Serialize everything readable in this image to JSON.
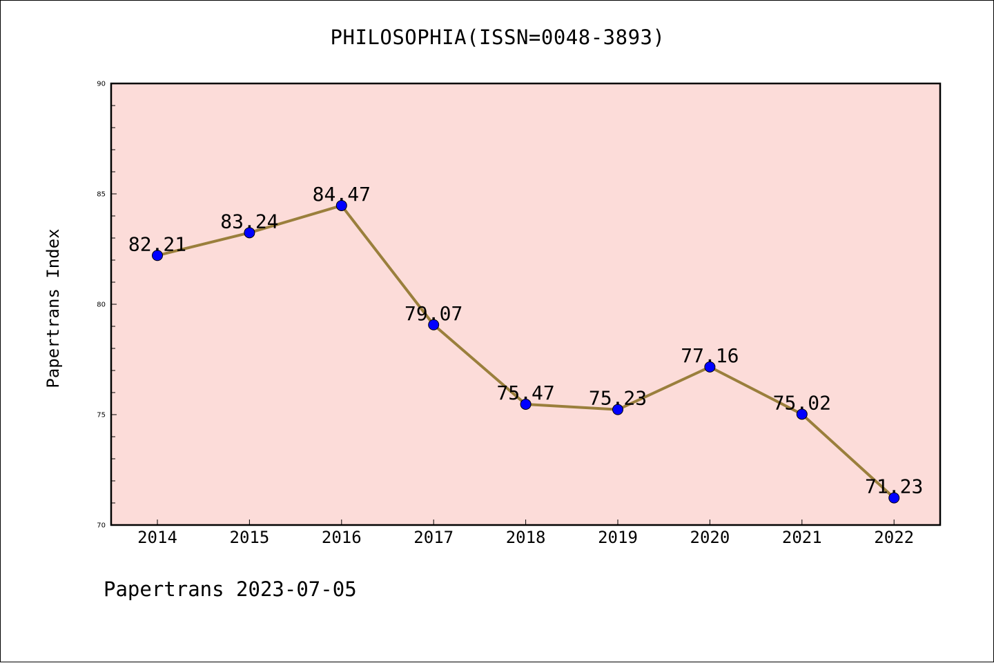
{
  "chart_data": {
    "type": "line",
    "title": "PHILOSOPHIA(ISSN=0048-3893)",
    "ylabel": "Papertrans Index",
    "xlabel": "",
    "categories": [
      "2014",
      "2015",
      "2016",
      "2017",
      "2018",
      "2019",
      "2020",
      "2021",
      "2022"
    ],
    "values": [
      82.21,
      83.24,
      84.47,
      79.07,
      75.47,
      75.23,
      77.16,
      75.02,
      71.23
    ],
    "data_labels": [
      "82.21",
      "83.24",
      "84.47",
      "79.07",
      "75.47",
      "75.23",
      "77.16",
      "75.02",
      "71.23"
    ],
    "ylim": [
      70,
      90
    ],
    "yticks": [
      "70",
      "75",
      "80",
      "85",
      "90"
    ],
    "grid": false,
    "colors": {
      "plot_background": "#fcdcd9",
      "line": "#9a7f3c",
      "marker": "#0000ff"
    }
  },
  "footer": "Papertrans 2023-07-05"
}
